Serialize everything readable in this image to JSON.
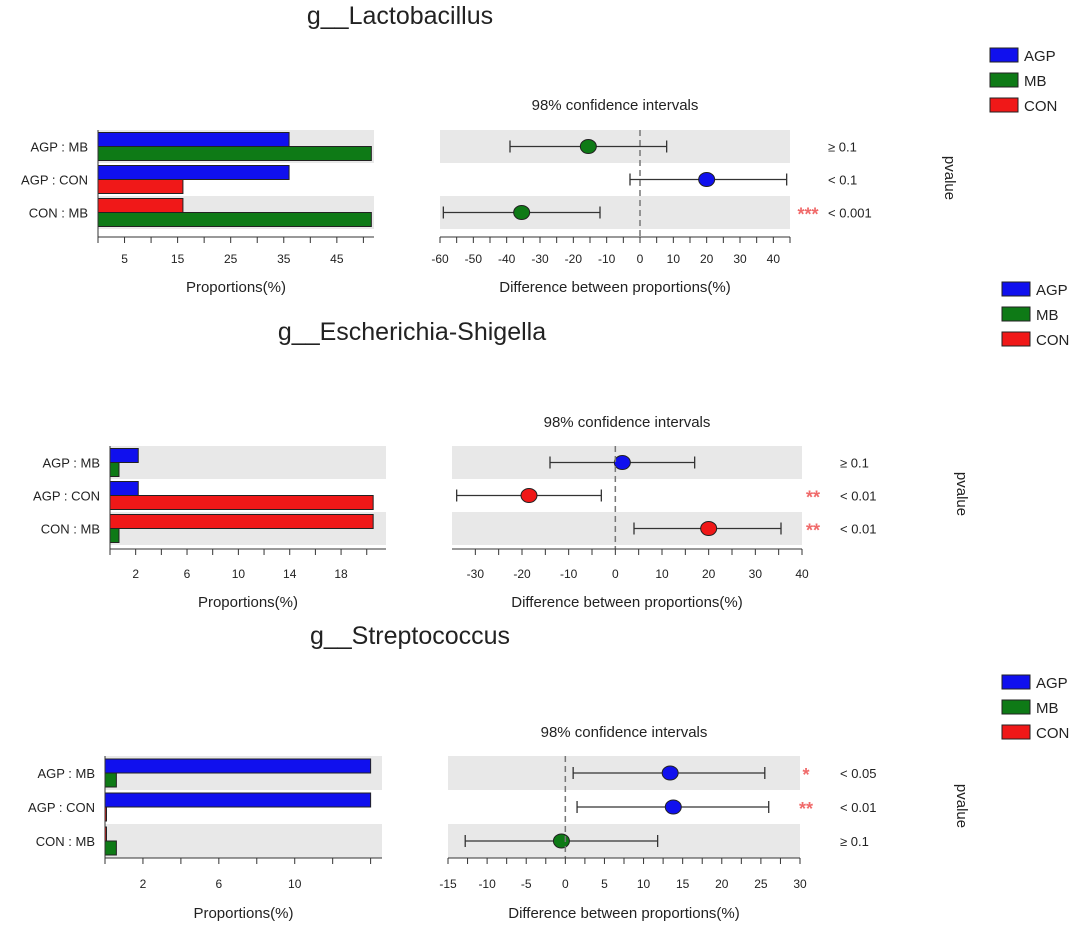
{
  "colors": {
    "AGP": "#1010ee",
    "MB": "#0e7a16",
    "CON": "#f01818",
    "stars": "#f06a6a"
  },
  "chart_data": [
    {
      "type": "bar",
      "title": "g__Lactobacillus",
      "ci_title": "98% confidence intervals",
      "xlabel": "Proportions(%)",
      "ci_xlabel": "Difference between proportions(%)",
      "pvalue_label": "pvalue",
      "legend": [
        "AGP",
        "MB",
        "CON"
      ],
      "xlim": [
        0,
        52
      ],
      "xticks": [
        5,
        15,
        25,
        35,
        45
      ],
      "ci_xlim": [
        -60,
        45
      ],
      "ci_xticks": [
        -60,
        -50,
        -40,
        -30,
        -20,
        -10,
        0,
        10,
        20,
        30,
        40
      ],
      "comparisons": [
        {
          "label": "AGP : MB",
          "g1": "AGP",
          "v1": 36,
          "g2": "MB",
          "v2": 51.5,
          "diff": -15.5,
          "lo": -39,
          "hi": 8,
          "pvalue": "≥ 0.1",
          "stars": ""
        },
        {
          "label": "AGP : CON",
          "g1": "AGP",
          "v1": 36,
          "g2": "CON",
          "v2": 16,
          "diff": 20,
          "lo": -3,
          "hi": 44,
          "pvalue": "< 0.1",
          "stars": ""
        },
        {
          "label": "CON : MB",
          "g1": "CON",
          "v1": 16,
          "g2": "MB",
          "v2": 51.5,
          "diff": -35.5,
          "lo": -59,
          "hi": -12,
          "pvalue": "< 0.001",
          "stars": "***"
        }
      ]
    },
    {
      "type": "bar",
      "title": "g__Escherichia-Shigella",
      "ci_title": "98% confidence intervals",
      "xlabel": "Proportions(%)",
      "ci_xlabel": "Difference between proportions(%)",
      "pvalue_label": "pvalue",
      "legend": [
        "AGP",
        "MB",
        "CON"
      ],
      "xlim": [
        0,
        21.5
      ],
      "xticks": [
        2,
        6,
        10,
        14,
        18
      ],
      "ci_xlim": [
        -35,
        40
      ],
      "ci_xticks": [
        -30,
        -20,
        -10,
        0,
        10,
        20,
        30,
        40
      ],
      "comparisons": [
        {
          "label": "AGP : MB",
          "g1": "AGP",
          "v1": 2.2,
          "g2": "MB",
          "v2": 0.7,
          "diff": 1.5,
          "lo": -14,
          "hi": 17,
          "pvalue": "≥ 0.1",
          "stars": ""
        },
        {
          "label": "AGP : CON",
          "g1": "AGP",
          "v1": 2.2,
          "g2": "CON",
          "v2": 20.5,
          "diff": -18.5,
          "lo": -34,
          "hi": -3,
          "pvalue": "< 0.01",
          "stars": "**"
        },
        {
          "label": "CON : MB",
          "g1": "CON",
          "v1": 20.5,
          "g2": "MB",
          "v2": 0.7,
          "diff": 20,
          "lo": 4,
          "hi": 35.5,
          "pvalue": "< 0.01",
          "stars": "**"
        }
      ]
    },
    {
      "type": "bar",
      "title": "g__Streptococcus",
      "ci_title": "98% confidence intervals",
      "xlabel": "Proportions(%)",
      "ci_xlabel": "Difference between proportions(%)",
      "pvalue_label": "pvalue",
      "legend": [
        "AGP",
        "MB",
        "CON"
      ],
      "xlim": [
        0,
        14.6
      ],
      "xticks": [
        2,
        6,
        10
      ],
      "ci_xlim": [
        -15,
        30
      ],
      "ci_xticks": [
        -15,
        -10,
        -5,
        0,
        5,
        10,
        15,
        20,
        25,
        30
      ],
      "comparisons": [
        {
          "label": "AGP : MB",
          "g1": "AGP",
          "v1": 14,
          "g2": "MB",
          "v2": 0.6,
          "diff": 13.4,
          "lo": 1,
          "hi": 25.5,
          "pvalue": "< 0.05",
          "stars": "*"
        },
        {
          "label": "AGP : CON",
          "g1": "AGP",
          "v1": 14,
          "g2": "CON",
          "v2": 0.05,
          "diff": 13.8,
          "lo": 1.5,
          "hi": 26,
          "pvalue": "< 0.01",
          "stars": "**"
        },
        {
          "label": "CON : MB",
          "g1": "CON",
          "v1": 0.05,
          "g2": "MB",
          "v2": 0.6,
          "diff": -0.5,
          "lo": -12.8,
          "hi": 11.8,
          "pvalue": "≥ 0.1",
          "stars": ""
        }
      ]
    }
  ]
}
